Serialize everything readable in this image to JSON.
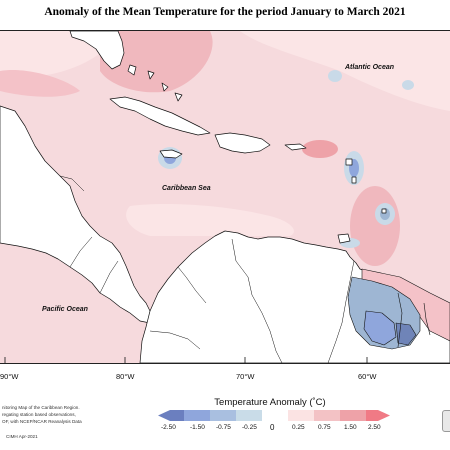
{
  "title": "Anomaly of the Mean Temperature for the period January to March 2021",
  "map": {
    "ocean_labels": {
      "atlantic": "Atlantic Ocean",
      "caribbean": "Caribbean Sea",
      "pacific": "Pacific Ocean"
    },
    "longitudes": [
      {
        "key": "w90",
        "label": "90°W"
      },
      {
        "key": "w80",
        "label": "80°W"
      },
      {
        "key": "w70",
        "label": "70°W"
      },
      {
        "key": "w60",
        "label": "60°W"
      }
    ],
    "colors": {
      "ocean_base": "#f6dadd",
      "pink_light": "#fbe5e6",
      "pink_mid": "#f4c2c8",
      "pink_strong": "#eaa3ab",
      "blue_light": "#c9dae8",
      "blue_mid": "#9eb6d3",
      "blue_dark": "#6f84b8",
      "land": "#ffffff",
      "outline": "#111111"
    }
  },
  "legend": {
    "title": "Temperature Anomaly (˚C)",
    "ticks": [
      {
        "key": "t1",
        "label": "-2.50"
      },
      {
        "key": "t2",
        "label": "-1.50"
      },
      {
        "key": "t3",
        "label": "-0.75"
      },
      {
        "key": "t4",
        "label": "-0.25"
      },
      {
        "key": "t5",
        "label": "0"
      },
      {
        "key": "t6",
        "label": "0.25"
      },
      {
        "key": "t7",
        "label": "0.75"
      },
      {
        "key": "t8",
        "label": "1.50"
      },
      {
        "key": "t9",
        "label": "2.50"
      }
    ],
    "bins": [
      "#6b7fbf",
      "#8fa6dc",
      "#a9bfe0",
      "#c9dce8",
      "#ffffff",
      "#fbe3e3",
      "#f3c2c5",
      "#eea2a8",
      "#f07a85"
    ]
  },
  "footnote": {
    "line1": "nitoring Map of the Caribbean Region.",
    "line2": "regating station based observations,",
    "line3": "OF, with NCEP/NCAR Reanalysis Data",
    "credit": "CIMH Apr-2021"
  }
}
